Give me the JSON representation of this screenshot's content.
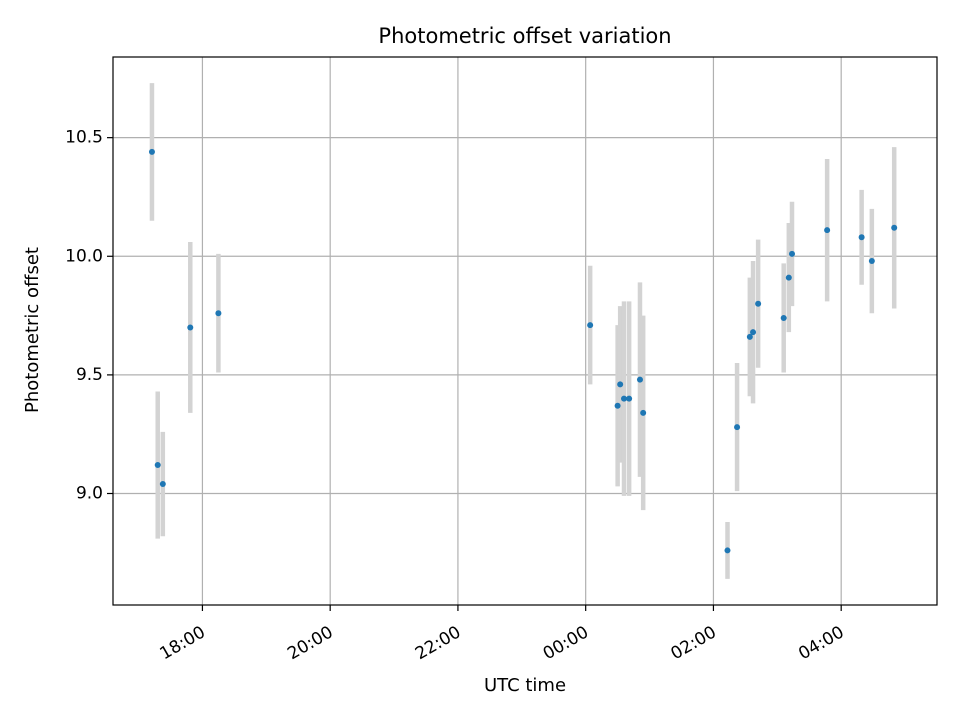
{
  "chart_data": {
    "type": "scatter",
    "title": "Photometric offset variation",
    "xlabel": "UTC time",
    "ylabel": "Photometric offset",
    "x_unit": "UTC hours (continuing past midnight)",
    "xlim": [
      16.6,
      29.5
    ],
    "ylim": [
      8.53,
      10.84
    ],
    "x_ticks": [
      {
        "value": 18,
        "label": "18:00"
      },
      {
        "value": 20,
        "label": "20:00"
      },
      {
        "value": 22,
        "label": "22:00"
      },
      {
        "value": 24,
        "label": "00:00"
      },
      {
        "value": 26,
        "label": "02:00"
      },
      {
        "value": 28,
        "label": "04:00"
      }
    ],
    "y_ticks": [
      {
        "value": 9.0,
        "label": "9.0"
      },
      {
        "value": 9.5,
        "label": "9.5"
      },
      {
        "value": 10.0,
        "label": "10.0"
      },
      {
        "value": 10.5,
        "label": "10.5"
      }
    ],
    "grid": true,
    "marker_color": "#1f77b4",
    "errorbar_color": "#d3d3d3",
    "points": [
      {
        "x": 17.21,
        "y": 10.44,
        "err": 0.29
      },
      {
        "x": 17.3,
        "y": 9.12,
        "err": 0.31
      },
      {
        "x": 17.38,
        "y": 9.04,
        "err": 0.22
      },
      {
        "x": 17.81,
        "y": 9.7,
        "err": 0.36
      },
      {
        "x": 18.25,
        "y": 9.76,
        "err": 0.25
      },
      {
        "x": 24.07,
        "y": 9.71,
        "err": 0.25
      },
      {
        "x": 24.5,
        "y": 9.37,
        "err": 0.34
      },
      {
        "x": 24.54,
        "y": 9.46,
        "err": 0.33
      },
      {
        "x": 24.6,
        "y": 9.4,
        "err": 0.41
      },
      {
        "x": 24.68,
        "y": 9.4,
        "err": 0.41
      },
      {
        "x": 24.85,
        "y": 9.48,
        "err": 0.41
      },
      {
        "x": 24.9,
        "y": 9.34,
        "err": 0.41
      },
      {
        "x": 26.22,
        "y": 8.76,
        "err": 0.12
      },
      {
        "x": 26.37,
        "y": 9.28,
        "err": 0.27
      },
      {
        "x": 26.57,
        "y": 9.66,
        "err": 0.25
      },
      {
        "x": 26.62,
        "y": 9.68,
        "err": 0.3
      },
      {
        "x": 26.7,
        "y": 9.8,
        "err": 0.27
      },
      {
        "x": 27.1,
        "y": 9.74,
        "err": 0.23
      },
      {
        "x": 27.18,
        "y": 9.91,
        "err": 0.23
      },
      {
        "x": 27.23,
        "y": 10.01,
        "err": 0.22
      },
      {
        "x": 27.78,
        "y": 10.11,
        "err": 0.3
      },
      {
        "x": 28.32,
        "y": 10.08,
        "err": 0.2
      },
      {
        "x": 28.48,
        "y": 9.98,
        "err": 0.22
      },
      {
        "x": 28.83,
        "y": 10.12,
        "err": 0.34
      }
    ]
  }
}
